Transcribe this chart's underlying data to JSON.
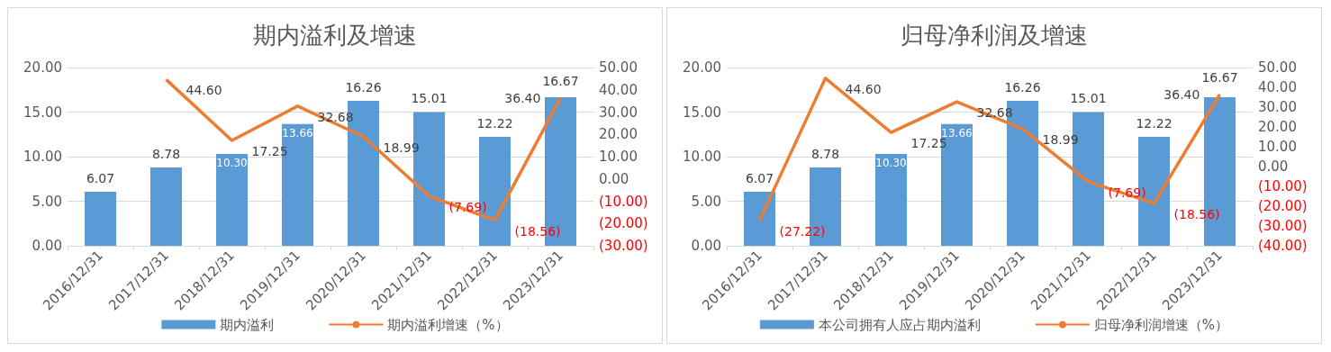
{
  "chart_data": [
    {
      "type": "bar",
      "title": "期内溢利及增速",
      "categories": [
        "2016/12/31",
        "2017/12/31",
        "2018/12/31",
        "2019/12/31",
        "2020/12/31",
        "2021/12/31",
        "2022/12/31",
        "2023/12/31"
      ],
      "series": [
        {
          "name": "期内溢利",
          "color": "#5b9bd5",
          "values": [
            6.07,
            8.78,
            10.3,
            13.66,
            16.26,
            15.01,
            12.22,
            16.67
          ],
          "value_labels": [
            "6.07",
            "8.78",
            "10.30",
            "13.66",
            "16.26",
            "15.01",
            "12.22",
            "16.67"
          ]
        },
        {
          "name": "期内溢利增速（%）",
          "type": "line",
          "axis": "y2",
          "color": "#ed7d31",
          "values": [
            null,
            44.6,
            17.25,
            32.68,
            18.99,
            -7.69,
            -18.56,
            36.4
          ],
          "value_labels": [
            null,
            "44.60",
            "17.25",
            "32.68",
            "18.99",
            "(7.69)",
            "(18.56)",
            "36.40"
          ]
        }
      ],
      "ylim": [
        0,
        20
      ],
      "yticks": [
        {
          "value": 0,
          "label": "0.00"
        },
        {
          "value": 5,
          "label": "5.00"
        },
        {
          "value": 10,
          "label": "10.00"
        },
        {
          "value": 15,
          "label": "15.00"
        },
        {
          "value": 20,
          "label": "20.00"
        }
      ],
      "y2lim": [
        -30,
        50
      ],
      "y2ticks": [
        {
          "value": -30,
          "label": "(30.00)"
        },
        {
          "value": -20,
          "label": "(20.00)"
        },
        {
          "value": -10,
          "label": "(10.00)"
        },
        {
          "value": 0,
          "label": "0.00"
        },
        {
          "value": 10,
          "label": "10.00"
        },
        {
          "value": 20,
          "label": "20.00"
        },
        {
          "value": 30,
          "label": "30.00"
        },
        {
          "value": 40,
          "label": "40.00"
        },
        {
          "value": 50,
          "label": "50.00"
        }
      ],
      "grid": "y",
      "legend": "bottom"
    },
    {
      "type": "bar",
      "title": "归母净利润及增速",
      "categories": [
        "2016/12/31",
        "2017/12/31",
        "2018/12/31",
        "2019/12/31",
        "2020/12/31",
        "2021/12/31",
        "2022/12/31",
        "2023/12/31"
      ],
      "series": [
        {
          "name": "本公司拥有人应占期内溢利",
          "color": "#5b9bd5",
          "values": [
            6.07,
            8.78,
            10.3,
            13.66,
            16.26,
            15.01,
            12.22,
            16.67
          ],
          "value_labels": [
            "6.07",
            "8.78",
            "10.30",
            "13.66",
            "16.26",
            "15.01",
            "12.22",
            "16.67"
          ]
        },
        {
          "name": "归母净利润增速（%）",
          "type": "line",
          "axis": "y2",
          "color": "#ed7d31",
          "values": [
            -27.22,
            44.6,
            17.25,
            32.68,
            18.99,
            -7.69,
            -18.56,
            36.4
          ],
          "value_labels": [
            "(27.22)",
            "44.60",
            "17.25",
            "32.68",
            "18.99",
            "(7.69)",
            "(18.56)",
            "36.40"
          ]
        }
      ],
      "ylim": [
        0,
        20
      ],
      "yticks": [
        {
          "value": 0,
          "label": "0.00"
        },
        {
          "value": 5,
          "label": "5.00"
        },
        {
          "value": 10,
          "label": "10.00"
        },
        {
          "value": 15,
          "label": "15.00"
        },
        {
          "value": 20,
          "label": "20.00"
        }
      ],
      "y2lim": [
        -40,
        50
      ],
      "y2ticks": [
        {
          "value": -40,
          "label": "(40.00)"
        },
        {
          "value": -30,
          "label": "(30.00)"
        },
        {
          "value": -20,
          "label": "(20.00)"
        },
        {
          "value": -10,
          "label": "(10.00)"
        },
        {
          "value": 0,
          "label": "0.00"
        },
        {
          "value": 10,
          "label": "10.00"
        },
        {
          "value": 20,
          "label": "20.00"
        },
        {
          "value": 30,
          "label": "30.00"
        },
        {
          "value": 40,
          "label": "40.00"
        },
        {
          "value": 50,
          "label": "50.00"
        }
      ],
      "grid": "y",
      "legend": "bottom"
    }
  ]
}
